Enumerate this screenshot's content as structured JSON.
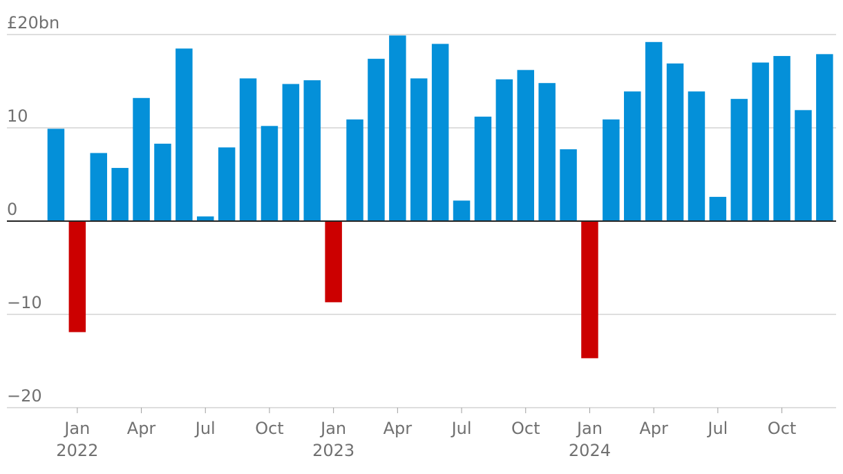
{
  "chart_data": {
    "type": "bar",
    "y_unit_label": "£20bn",
    "ylim": [
      -20,
      20
    ],
    "y_ticks": [
      {
        "value": 20,
        "label": "£20bn"
      },
      {
        "value": 10,
        "label": "10"
      },
      {
        "value": 0,
        "label": "0"
      },
      {
        "value": -10,
        "label": "−10"
      },
      {
        "value": -20,
        "label": "−20"
      }
    ],
    "x_ticks": [
      {
        "index": 1,
        "label": "Jan",
        "year": "2022"
      },
      {
        "index": 4,
        "label": "Apr"
      },
      {
        "index": 7,
        "label": "Jul"
      },
      {
        "index": 10,
        "label": "Oct"
      },
      {
        "index": 13,
        "label": "Jan",
        "year": "2023"
      },
      {
        "index": 16,
        "label": "Apr"
      },
      {
        "index": 19,
        "label": "Jul"
      },
      {
        "index": 22,
        "label": "Oct"
      },
      {
        "index": 25,
        "label": "Jan",
        "year": "2024"
      },
      {
        "index": 28,
        "label": "Apr"
      },
      {
        "index": 31,
        "label": "Jul"
      },
      {
        "index": 34,
        "label": "Oct"
      }
    ],
    "values": [
      9.9,
      -11.9,
      7.3,
      5.7,
      13.2,
      8.3,
      18.5,
      0.5,
      7.9,
      15.3,
      10.2,
      14.7,
      15.1,
      -8.7,
      10.9,
      17.4,
      19.9,
      15.3,
      19.0,
      2.2,
      11.2,
      15.2,
      16.2,
      14.8,
      7.7,
      -14.7,
      10.9,
      13.9,
      19.2,
      16.9,
      13.9,
      2.6,
      13.1,
      17.0,
      17.7,
      11.9,
      17.9
    ],
    "colors": {
      "positive": "#0490d9",
      "negative": "#cc0000",
      "grid": "#bdbdbd",
      "zero_line": "#222222"
    }
  }
}
